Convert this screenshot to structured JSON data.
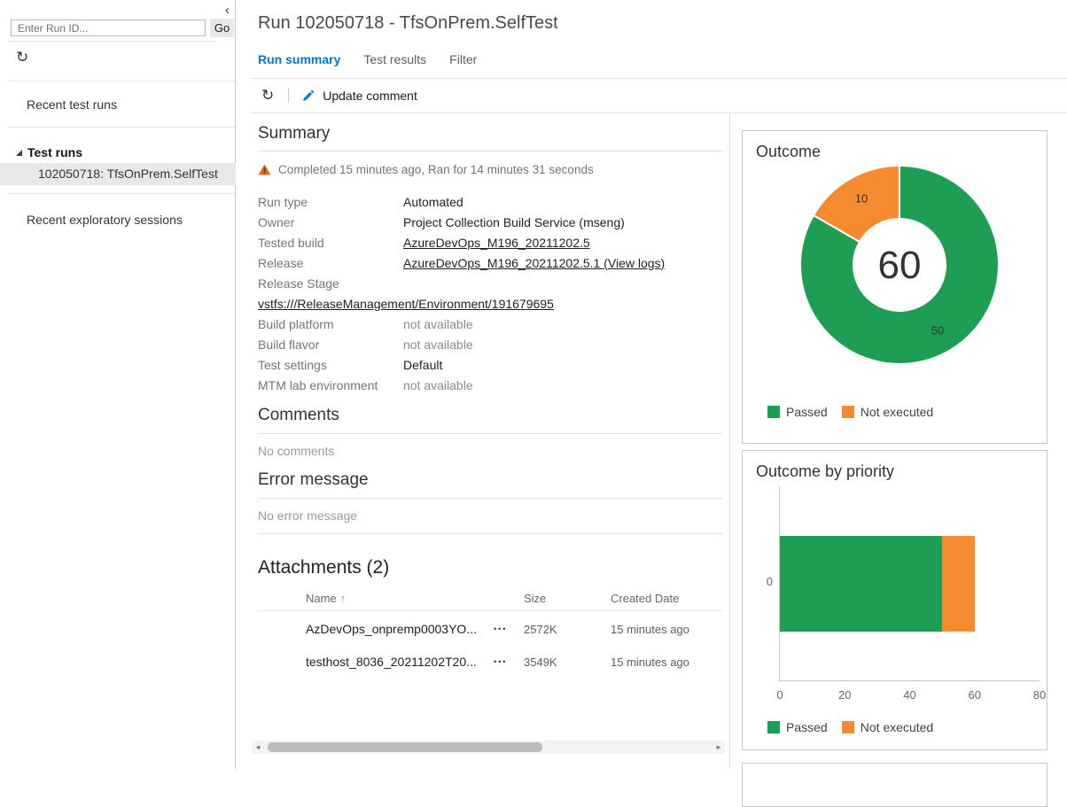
{
  "app": {
    "accent_color": "#0078d4"
  },
  "icons": {
    "collapse": "‹",
    "refresh": "↻",
    "sort_asc": "↑",
    "ellipsis": "•••",
    "scroll_left": "◄",
    "scroll_right": "►"
  },
  "sidebar": {
    "run_id_input": {
      "placeholder": "Enter Run ID...",
      "value": ""
    },
    "go_button": "Go",
    "recent_test_runs": "Recent test runs",
    "tree": {
      "header": "Test runs",
      "selected_run": "102050718: TfsOnPrem.SelfTest"
    },
    "recent_exploratory_sessions": "Recent exploratory sessions"
  },
  "header": {
    "title": "Run 102050718 - TfsOnPrem.SelfTest",
    "tabs": [
      {
        "label": "Run summary",
        "active": true
      },
      {
        "label": "Test results",
        "active": false
      },
      {
        "label": "Filter",
        "active": false
      }
    ],
    "toolbar": {
      "update_comment": "Update comment"
    }
  },
  "summary": {
    "heading": "Summary",
    "status_message": "Completed 15 minutes ago, Ran for 14 minutes 31 seconds",
    "fields": [
      {
        "label": "Run type",
        "value": "Automated",
        "style": "text"
      },
      {
        "label": "Owner",
        "value": "Project Collection Build Service (mseng)",
        "style": "text"
      },
      {
        "label": "Tested build",
        "value": "AzureDevOps_M196_20211202.5",
        "style": "link"
      },
      {
        "label": "Release",
        "value": "AzureDevOps_M196_20211202.5.1 (View logs)",
        "style": "link"
      },
      {
        "label": "Release Stage",
        "value": "vstfs:///ReleaseManagement/Environment/191679695",
        "style": "link",
        "full_width": true
      },
      {
        "label": "Build platform",
        "value": "not available",
        "style": "muted"
      },
      {
        "label": "Build flavor",
        "value": "not available",
        "style": "muted"
      },
      {
        "label": "Test settings",
        "value": "Default",
        "style": "text"
      },
      {
        "label": "MTM lab environment",
        "value": "not available",
        "style": "muted"
      }
    ]
  },
  "comments": {
    "heading": "Comments",
    "empty_message": "No comments"
  },
  "error_message": {
    "heading": "Error message",
    "empty_message": "No error message"
  },
  "attachments": {
    "heading": "Attachments (2)",
    "columns": {
      "name": "Name",
      "size": "Size",
      "created": "Created Date"
    },
    "rows": [
      {
        "name": "AzDevOps_onpremp0003YO...",
        "size": "2572K",
        "created": "15 minutes ago"
      },
      {
        "name": "testhost_8036_20211202T20...",
        "size": "3549K",
        "created": "15 minutes ago"
      }
    ]
  },
  "chart_data": [
    {
      "type": "pie",
      "variant": "donut",
      "title": "Outcome",
      "center_total": 60,
      "slices": [
        {
          "label": "Passed",
          "value": 50,
          "color": "#1e9e54"
        },
        {
          "label": "Not executed",
          "value": 10,
          "color": "#f68a2e"
        }
      ],
      "legend_position": "bottom"
    },
    {
      "type": "bar",
      "orientation": "horizontal",
      "stacked": true,
      "title": "Outcome by priority",
      "categories": [
        "0"
      ],
      "series": [
        {
          "name": "Passed",
          "values": [
            50
          ],
          "color": "#1e9e54"
        },
        {
          "name": "Not executed",
          "values": [
            10
          ],
          "color": "#f68a2e"
        }
      ],
      "xlim": [
        0,
        80
      ],
      "xticks": [
        0,
        20,
        40,
        60,
        80
      ],
      "xlabel": "",
      "ylabel": "",
      "grid": false,
      "legend_position": "bottom"
    }
  ]
}
